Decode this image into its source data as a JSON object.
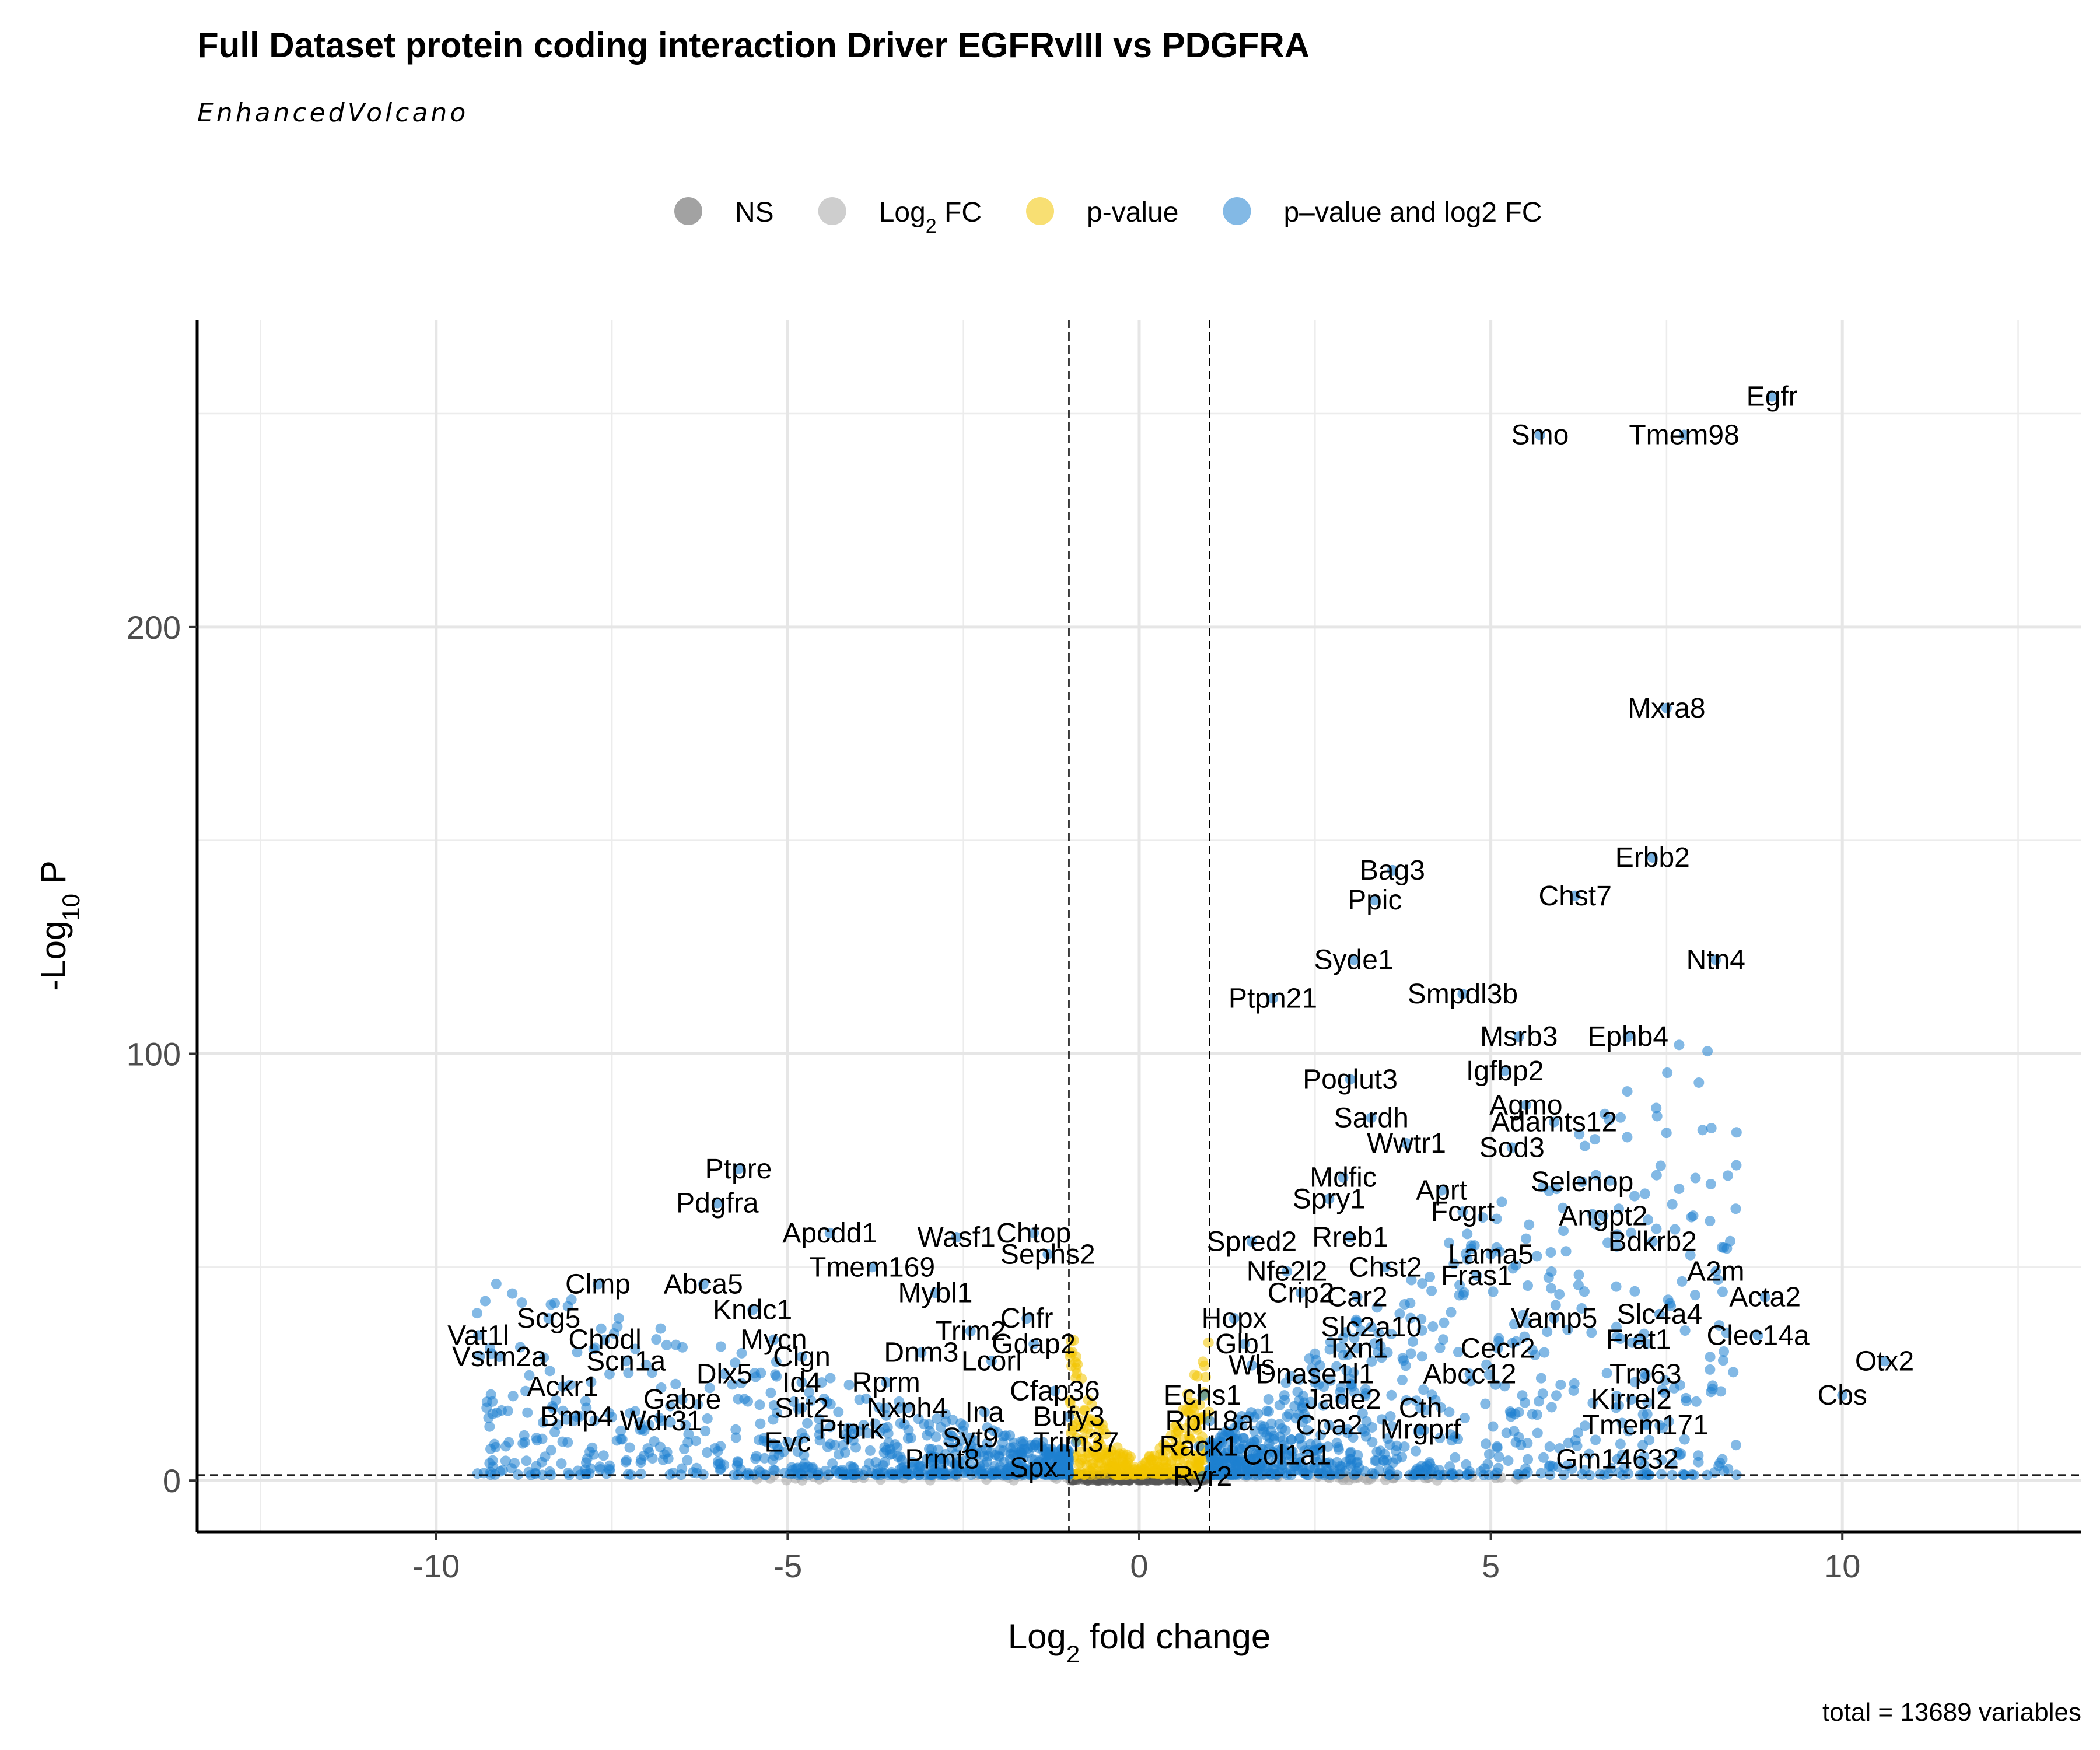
{
  "chart_data": {
    "type": "scatter",
    "title": "Full Dataset protein coding interaction Driver EGFRvIII vs PDGFRA",
    "subtitle": "EnhancedVolcano",
    "xlabel": "Log2 fold change",
    "ylabel": "-Log10 P",
    "caption": "total = 13689 variables",
    "xlim": [
      -13.4,
      13.4
    ],
    "ylim": [
      -12,
      272
    ],
    "x_ticks": [
      -10,
      -5,
      0,
      5,
      10
    ],
    "x_tick_labels": [
      "-10",
      "-5",
      "0",
      "5",
      "10"
    ],
    "y_ticks": [
      0,
      100,
      200
    ],
    "y_tick_labels": [
      "0",
      "100",
      "200"
    ],
    "fc_cutoff": 1,
    "p_cutoff_line": 1.3,
    "grid": true,
    "legend_position": "top",
    "legend": [
      {
        "key": "NS",
        "label": "NS",
        "color": "#555555"
      },
      {
        "key": "FC",
        "label": "Log2 FC",
        "color": "#a6a6a6"
      },
      {
        "key": "P",
        "label": "p-value",
        "color": "#f2c500"
      },
      {
        "key": "FC_P",
        "label": "p–value and log2 FC",
        "color": "#1e7fcf"
      }
    ],
    "labeled_genes": [
      {
        "gene": "Egfr",
        "x": 9.0,
        "y": 254
      },
      {
        "gene": "Smo",
        "x": 5.7,
        "y": 245
      },
      {
        "gene": "Tmem98",
        "x": 7.75,
        "y": 245
      },
      {
        "gene": "Mxra8",
        "x": 7.5,
        "y": 181
      },
      {
        "gene": "Bag3",
        "x": 3.6,
        "y": 143
      },
      {
        "gene": "Erbb2",
        "x": 7.3,
        "y": 146
      },
      {
        "gene": "Ppic",
        "x": 3.35,
        "y": 136
      },
      {
        "gene": "Chst7",
        "x": 6.2,
        "y": 137
      },
      {
        "gene": "Syde1",
        "x": 3.05,
        "y": 122
      },
      {
        "gene": "Ntn4",
        "x": 8.2,
        "y": 122
      },
      {
        "gene": "Ptpn21",
        "x": 1.9,
        "y": 113
      },
      {
        "gene": "Smpdl3b",
        "x": 4.6,
        "y": 114
      },
      {
        "gene": "Msrb3",
        "x": 5.4,
        "y": 104
      },
      {
        "gene": "Ephb4",
        "x": 6.95,
        "y": 104
      },
      {
        "gene": "Poglut3",
        "x": 3.0,
        "y": 94
      },
      {
        "gene": "Igfbp2",
        "x": 5.2,
        "y": 96
      },
      {
        "gene": "Agmo",
        "x": 5.5,
        "y": 88
      },
      {
        "gene": "Sardh",
        "x": 3.3,
        "y": 85
      },
      {
        "gene": "Adamts12",
        "x": 5.9,
        "y": 84
      },
      {
        "gene": "Wwtr1",
        "x": 3.8,
        "y": 79
      },
      {
        "gene": "Sod3",
        "x": 5.3,
        "y": 78
      },
      {
        "gene": "Ptpre",
        "x": -5.7,
        "y": 73
      },
      {
        "gene": "Mdfic",
        "x": 2.9,
        "y": 71
      },
      {
        "gene": "Selenop",
        "x": 6.3,
        "y": 70
      },
      {
        "gene": "Aprt",
        "x": 4.3,
        "y": 68
      },
      {
        "gene": "Pdgfra",
        "x": -6.0,
        "y": 65
      },
      {
        "gene": "Spry1",
        "x": 2.7,
        "y": 66
      },
      {
        "gene": "Fcgrt",
        "x": 4.6,
        "y": 63
      },
      {
        "gene": "Angpt2",
        "x": 6.6,
        "y": 62
      },
      {
        "gene": "Chtop",
        "x": -1.5,
        "y": 58
      },
      {
        "gene": "Wasf1",
        "x": -2.6,
        "y": 57
      },
      {
        "gene": "Apcdd1",
        "x": -4.4,
        "y": 58
      },
      {
        "gene": "Spred2",
        "x": 1.6,
        "y": 56
      },
      {
        "gene": "Rreb1",
        "x": 3.0,
        "y": 57
      },
      {
        "gene": "Bdkrb2",
        "x": 7.3,
        "y": 56
      },
      {
        "gene": "Lama5",
        "x": 5.0,
        "y": 53
      },
      {
        "gene": "Sephs2",
        "x": -1.3,
        "y": 53
      },
      {
        "gene": "Tmem169",
        "x": -3.8,
        "y": 50
      },
      {
        "gene": "A2m",
        "x": 8.2,
        "y": 49
      },
      {
        "gene": "Nfe2l2",
        "x": 2.1,
        "y": 49
      },
      {
        "gene": "Chst2",
        "x": 3.5,
        "y": 50
      },
      {
        "gene": "Fras1",
        "x": 4.8,
        "y": 48
      },
      {
        "gene": "Abca5",
        "x": -6.2,
        "y": 46
      },
      {
        "gene": "Clmp",
        "x": -7.7,
        "y": 46
      },
      {
        "gene": "Mybl1",
        "x": -2.9,
        "y": 44
      },
      {
        "gene": "Crip2",
        "x": 2.3,
        "y": 44
      },
      {
        "gene": "Acta2",
        "x": 8.9,
        "y": 43
      },
      {
        "gene": "Car2",
        "x": 3.1,
        "y": 43
      },
      {
        "gene": "Kndc1",
        "x": -5.5,
        "y": 40
      },
      {
        "gene": "Scg5",
        "x": -8.4,
        "y": 38
      },
      {
        "gene": "Slc4a4",
        "x": 7.4,
        "y": 39
      },
      {
        "gene": "Vamp5",
        "x": 5.9,
        "y": 38
      },
      {
        "gene": "Chfr",
        "x": -1.6,
        "y": 38
      },
      {
        "gene": "Hopx",
        "x": 1.35,
        "y": 38
      },
      {
        "gene": "Trim2",
        "x": -2.4,
        "y": 35
      },
      {
        "gene": "Slc2a10",
        "x": 3.3,
        "y": 36
      },
      {
        "gene": "Vat1l",
        "x": -9.4,
        "y": 34
      },
      {
        "gene": "Mycn",
        "x": -5.2,
        "y": 33
      },
      {
        "gene": "Chodl",
        "x": -7.6,
        "y": 33
      },
      {
        "gene": "Gdap2",
        "x": -1.5,
        "y": 32
      },
      {
        "gene": "Frat1",
        "x": 7.1,
        "y": 33
      },
      {
        "gene": "Clec14a",
        "x": 8.8,
        "y": 34
      },
      {
        "gene": "Glb1",
        "x": 1.5,
        "y": 32
      },
      {
        "gene": "Txn1",
        "x": 3.1,
        "y": 31
      },
      {
        "gene": "Cecr2",
        "x": 5.1,
        "y": 31
      },
      {
        "gene": "Dnm3",
        "x": -3.1,
        "y": 30
      },
      {
        "gene": "Vstm2a",
        "x": -9.1,
        "y": 29
      },
      {
        "gene": "Clgn",
        "x": -4.8,
        "y": 29
      },
      {
        "gene": "Scn1a",
        "x": -7.3,
        "y": 28
      },
      {
        "gene": "Lcorl",
        "x": -2.1,
        "y": 28
      },
      {
        "gene": "Otx2",
        "x": 10.6,
        "y": 28
      },
      {
        "gene": "Wls",
        "x": 1.6,
        "y": 27
      },
      {
        "gene": "Trp63",
        "x": 7.2,
        "y": 25
      },
      {
        "gene": "Dlx5",
        "x": -5.9,
        "y": 25
      },
      {
        "gene": "Dnase1l1",
        "x": 2.5,
        "y": 25
      },
      {
        "gene": "Abcc12",
        "x": 4.7,
        "y": 25
      },
      {
        "gene": "Rprm",
        "x": -3.6,
        "y": 23
      },
      {
        "gene": "Id4",
        "x": -4.8,
        "y": 23
      },
      {
        "gene": "Ackr1",
        "x": -8.2,
        "y": 22
      },
      {
        "gene": "Cbs",
        "x": 10.0,
        "y": 20
      },
      {
        "gene": "Cfap36",
        "x": -1.2,
        "y": 21
      },
      {
        "gene": "Echs1",
        "x": 0.9,
        "y": 20
      },
      {
        "gene": "Kirrel2",
        "x": 7.0,
        "y": 19
      },
      {
        "gene": "Jade2",
        "x": 2.9,
        "y": 19
      },
      {
        "gene": "Cth",
        "x": 4.0,
        "y": 17
      },
      {
        "gene": "Gabre",
        "x": -6.5,
        "y": 19
      },
      {
        "gene": "Nxph4",
        "x": -3.3,
        "y": 17
      },
      {
        "gene": "Ina",
        "x": -2.2,
        "y": 16
      },
      {
        "gene": "Bufy3",
        "x": -1.0,
        "y": 15
      },
      {
        "gene": "Slit2",
        "x": -4.8,
        "y": 17
      },
      {
        "gene": "Tmem171",
        "x": 7.2,
        "y": 13
      },
      {
        "gene": "Bmp4",
        "x": -8.0,
        "y": 15
      },
      {
        "gene": "Wdr31",
        "x": -6.8,
        "y": 14
      },
      {
        "gene": "Rpl18a",
        "x": 1.0,
        "y": 14
      },
      {
        "gene": "Cpa2",
        "x": 2.7,
        "y": 13
      },
      {
        "gene": "Mrgprf",
        "x": 4.0,
        "y": 12
      },
      {
        "gene": "Ptprk",
        "x": -4.1,
        "y": 12
      },
      {
        "gene": "Syt9",
        "x": -2.4,
        "y": 10
      },
      {
        "gene": "Trim37",
        "x": -0.9,
        "y": 9
      },
      {
        "gene": "Rack1",
        "x": 0.85,
        "y": 8
      },
      {
        "gene": "Col1a1",
        "x": 2.1,
        "y": 6
      },
      {
        "gene": "Evc",
        "x": -5.0,
        "y": 9
      },
      {
        "gene": "Gm14632",
        "x": 6.8,
        "y": 5
      },
      {
        "gene": "Prmt8",
        "x": -2.8,
        "y": 5
      },
      {
        "gene": "Spx",
        "x": -1.5,
        "y": 3
      },
      {
        "gene": "Ryr2",
        "x": 0.9,
        "y": 1
      }
    ]
  }
}
